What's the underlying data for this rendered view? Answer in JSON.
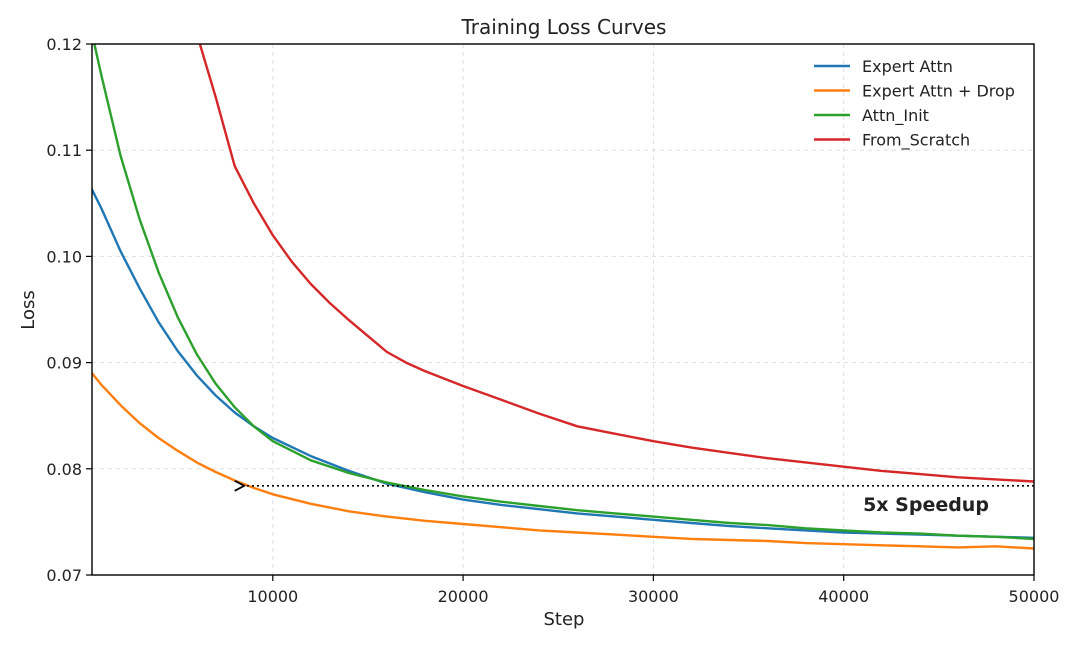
{
  "chart_data": {
    "type": "line",
    "title": "Training Loss Curves",
    "xlabel": "Step",
    "ylabel": "Loss",
    "xlim": [
      500,
      50000
    ],
    "ylim": [
      0.07,
      0.12
    ],
    "xticks": [
      10000,
      20000,
      30000,
      40000,
      50000
    ],
    "xtick_labels": [
      "10000",
      "20000",
      "30000",
      "40000",
      "50000"
    ],
    "yticks": [
      0.07,
      0.08,
      0.09,
      0.1,
      0.11,
      0.12
    ],
    "ytick_labels": [
      "0.07",
      "0.08",
      "0.09",
      "0.10",
      "0.11",
      "0.12"
    ],
    "grid": true,
    "legend_position": "top-right",
    "series": [
      {
        "name": "Expert Attn",
        "color": "#1f77b4",
        "x": [
          500,
          1000,
          2000,
          3000,
          4000,
          5000,
          6000,
          7000,
          8000,
          9000,
          10000,
          12000,
          14000,
          16000,
          18000,
          20000,
          22000,
          24000,
          26000,
          28000,
          30000,
          32000,
          34000,
          36000,
          38000,
          40000,
          42000,
          44000,
          46000,
          48000,
          50000
        ],
        "y": [
          0.1063,
          0.1045,
          0.1005,
          0.097,
          0.0938,
          0.0911,
          0.0888,
          0.0869,
          0.0853,
          0.084,
          0.0829,
          0.0812,
          0.0798,
          0.0786,
          0.0778,
          0.0771,
          0.0766,
          0.0762,
          0.0758,
          0.0755,
          0.0752,
          0.0749,
          0.0746,
          0.0744,
          0.0742,
          0.074,
          0.0739,
          0.0738,
          0.0737,
          0.0736,
          0.0735
        ]
      },
      {
        "name": "Expert Attn + Drop",
        "color": "#ff7f0e",
        "x": [
          500,
          1000,
          2000,
          3000,
          4000,
          5000,
          6000,
          7000,
          8000,
          9000,
          10000,
          12000,
          14000,
          16000,
          18000,
          20000,
          22000,
          24000,
          26000,
          28000,
          30000,
          32000,
          34000,
          36000,
          38000,
          40000,
          42000,
          44000,
          46000,
          48000,
          50000
        ],
        "y": [
          0.089,
          0.0879,
          0.086,
          0.0843,
          0.0829,
          0.0817,
          0.0806,
          0.0797,
          0.0789,
          0.0782,
          0.0776,
          0.0767,
          0.076,
          0.0755,
          0.0751,
          0.0748,
          0.0745,
          0.0742,
          0.074,
          0.0738,
          0.0736,
          0.0734,
          0.0733,
          0.0732,
          0.073,
          0.0729,
          0.0728,
          0.0727,
          0.0726,
          0.0727,
          0.0725
        ]
      },
      {
        "name": "Attn_Init",
        "color": "#2ca02c",
        "x": [
          500,
          1000,
          2000,
          3000,
          4000,
          5000,
          6000,
          7000,
          8000,
          9000,
          10000,
          12000,
          14000,
          16000,
          18000,
          20000,
          22000,
          24000,
          26000,
          28000,
          30000,
          32000,
          34000,
          36000,
          38000,
          40000,
          42000,
          44000,
          46000,
          48000,
          50000
        ],
        "y": [
          0.121,
          0.117,
          0.1095,
          0.1035,
          0.0985,
          0.0943,
          0.0908,
          0.088,
          0.0858,
          0.084,
          0.0826,
          0.0808,
          0.0796,
          0.0787,
          0.078,
          0.0774,
          0.0769,
          0.0765,
          0.0761,
          0.0758,
          0.0755,
          0.0752,
          0.0749,
          0.0747,
          0.0744,
          0.0742,
          0.074,
          0.0739,
          0.0737,
          0.0736,
          0.0734
        ]
      },
      {
        "name": "From_Scratch",
        "color": "#d62728",
        "x": [
          6000,
          7000,
          8000,
          9000,
          10000,
          11000,
          12000,
          13000,
          14000,
          15000,
          16000,
          17000,
          18000,
          20000,
          22000,
          24000,
          26000,
          28000,
          30000,
          32000,
          34000,
          36000,
          38000,
          40000,
          42000,
          44000,
          46000,
          48000,
          50000
        ],
        "y": [
          0.121,
          0.115,
          0.1085,
          0.105,
          0.102,
          0.0995,
          0.0974,
          0.0956,
          0.094,
          0.0925,
          0.091,
          0.09,
          0.0892,
          0.0878,
          0.0865,
          0.0852,
          0.084,
          0.0833,
          0.0826,
          0.082,
          0.0815,
          0.081,
          0.0806,
          0.0802,
          0.0798,
          0.0795,
          0.0792,
          0.079,
          0.0788
        ]
      }
    ],
    "annotation": {
      "text": "5x Speedup",
      "arrow_from": [
        50000,
        0.0784
      ],
      "arrow_to": [
        8500,
        0.0784
      ]
    }
  }
}
